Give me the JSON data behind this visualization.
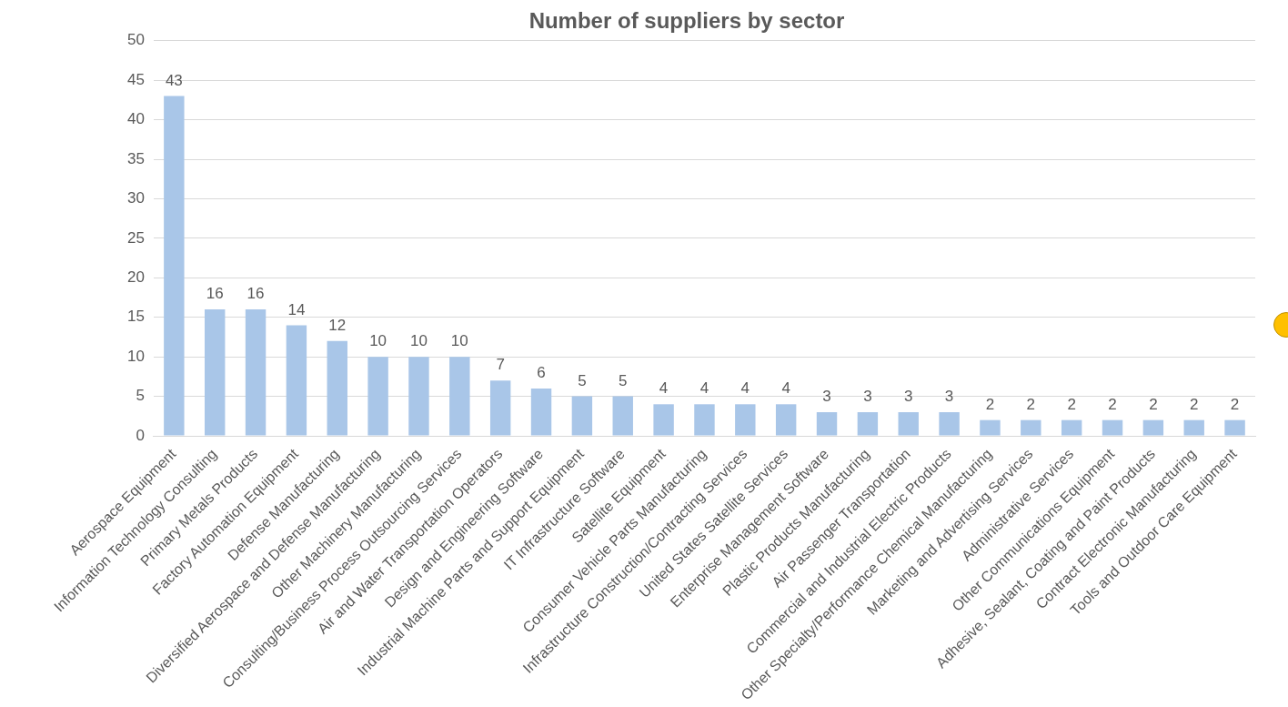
{
  "chart_data": {
    "type": "bar",
    "title": "Number of suppliers by sector",
    "categories": [
      "Aerospace Equipment",
      "Information Technology Consulting",
      "Primary Metals Products",
      "Factory Automation Equipment",
      "Defense Manufacturing",
      "Diversified Aerospace and Defense Manufacturing",
      "Other Machinery Manufacturing",
      "Consulting/Business Process Outsourcing Services",
      "Air and Water Transportation Operators",
      "Design and Engineering Software",
      "Industrial Machine Parts and Support Equipment",
      "IT Infrastructure Software",
      "Satellite Equipment",
      "Consumer Vehicle Parts Manufacturing",
      "Infrastructure Construction/Contracting Services",
      "United States Satellite Services",
      "Enterprise Management Software",
      "Plastic Products Manufacturing",
      "Air Passenger Transportation",
      "Commercial and Industrial Electric Products",
      "Other Specialty/Performance Chemical Manufacturing",
      "Marketing and Advertising Services",
      "Administrative Services",
      "Other Communications Equipment",
      "Adhesive, Sealant, Coating and Paint Products",
      "Contract Electronic Manufacturing",
      "Tools and Outdoor Care Equipment"
    ],
    "values": [
      43,
      16,
      16,
      14,
      12,
      10,
      10,
      10,
      7,
      6,
      5,
      5,
      4,
      4,
      4,
      4,
      3,
      3,
      3,
      3,
      2,
      2,
      2,
      2,
      2,
      2,
      2
    ],
    "color": "#a9c6e8",
    "ylim": [
      0,
      50
    ],
    "yticks": [
      0,
      5,
      10,
      15,
      20,
      25,
      30,
      35,
      40,
      45,
      50
    ],
    "grid": "y",
    "data_labels": true,
    "legend": false
  }
}
